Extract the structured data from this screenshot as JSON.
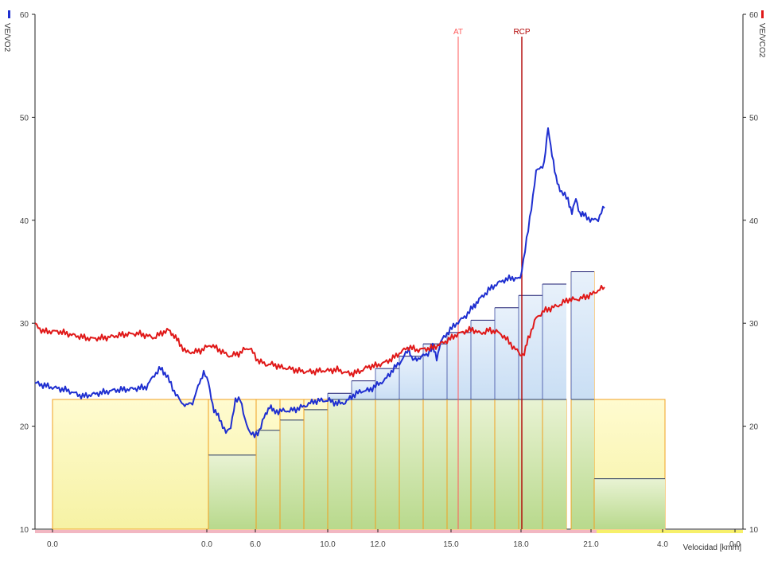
{
  "chart_data": {
    "type": "line",
    "y_left": {
      "label": "VE/VO2",
      "ticks": [
        10,
        20,
        30,
        40,
        50,
        60
      ],
      "range": [
        10,
        60
      ],
      "color": "#1f2fd0"
    },
    "y_right": {
      "label": "VE/VCO2",
      "ticks": [
        10,
        20,
        30,
        40,
        50,
        60
      ],
      "range": [
        10,
        60
      ],
      "color": "#e01818"
    },
    "x_axis": {
      "label": "Velocidad [km/h]",
      "tick_labels": [
        "0.0",
        "0.0",
        "6.0",
        "10.0",
        "12.0",
        "15.0",
        "18.0",
        "21.0",
        "4.0",
        "0.0"
      ]
    },
    "markers": [
      {
        "label": "AT",
        "color": "#ff5a5a"
      },
      {
        "label": "RCP",
        "color": "#b00000"
      }
    ],
    "series": [
      {
        "name": "VE/VO2",
        "color": "#1f2fd0",
        "points": [
          [
            0,
            24.2
          ],
          [
            20,
            23.8
          ],
          [
            40,
            23.5
          ],
          [
            60,
            22.9
          ],
          [
            80,
            23.2
          ],
          [
            100,
            23.5
          ],
          [
            120,
            23.6
          ],
          [
            140,
            23.8
          ],
          [
            150,
            25
          ],
          [
            158,
            25.6
          ],
          [
            165,
            25
          ],
          [
            175,
            23.4
          ],
          [
            183,
            22.4
          ],
          [
            190,
            22
          ],
          [
            198,
            22.3
          ],
          [
            205,
            23.8
          ],
          [
            212,
            25.3
          ],
          [
            218,
            24.2
          ],
          [
            225,
            21.5
          ],
          [
            232,
            20.8
          ],
          [
            240,
            19.3
          ],
          [
            246,
            20
          ],
          [
            252,
            22.4
          ],
          [
            258,
            22.8
          ],
          [
            264,
            20.5
          ],
          [
            270,
            19.5
          ],
          [
            276,
            19
          ],
          [
            282,
            19.6
          ],
          [
            288,
            20.8
          ],
          [
            295,
            22
          ],
          [
            300,
            21.4
          ],
          [
            310,
            21.5
          ],
          [
            320,
            21.5
          ],
          [
            330,
            21.7
          ],
          [
            340,
            22
          ],
          [
            350,
            22.4
          ],
          [
            360,
            22.5
          ],
          [
            370,
            22.5
          ],
          [
            380,
            22.2
          ],
          [
            390,
            22.3
          ],
          [
            400,
            23
          ],
          [
            410,
            23.4
          ],
          [
            420,
            23.5
          ],
          [
            430,
            24
          ],
          [
            440,
            24.5
          ],
          [
            450,
            25.5
          ],
          [
            460,
            26.3
          ],
          [
            470,
            27.5
          ],
          [
            475,
            26.4
          ],
          [
            480,
            26.5
          ],
          [
            486,
            26.8
          ],
          [
            492,
            26.9
          ],
          [
            500,
            27.7
          ],
          [
            505,
            26.6
          ],
          [
            510,
            28.2
          ],
          [
            520,
            29.2
          ],
          [
            530,
            30
          ],
          [
            540,
            30.6
          ],
          [
            550,
            31.5
          ],
          [
            555,
            32
          ],
          [
            560,
            32.4
          ],
          [
            570,
            33.2
          ],
          [
            580,
            33.8
          ],
          [
            590,
            34.2
          ],
          [
            600,
            34.4
          ],
          [
            610,
            34.3
          ],
          [
            620,
            39
          ],
          [
            630,
            44.7
          ],
          [
            640,
            45.5
          ],
          [
            645,
            48.9
          ],
          [
            650,
            46.5
          ],
          [
            655,
            44
          ],
          [
            660,
            43
          ],
          [
            670,
            42
          ],
          [
            675,
            40.8
          ],
          [
            680,
            42
          ],
          [
            685,
            40.7
          ],
          [
            690,
            40.5
          ],
          [
            700,
            40
          ],
          [
            708,
            40.1
          ],
          [
            712,
            40.8
          ],
          [
            716,
            41.2
          ]
        ]
      },
      {
        "name": "VE/VCO2",
        "color": "#e01818",
        "points": [
          [
            0,
            29.9
          ],
          [
            10,
            29.2
          ],
          [
            30,
            29.2
          ],
          [
            50,
            28.8
          ],
          [
            70,
            28.5
          ],
          [
            90,
            28.6
          ],
          [
            110,
            28.9
          ],
          [
            130,
            29
          ],
          [
            150,
            28.6
          ],
          [
            160,
            29.1
          ],
          [
            168,
            29.3
          ],
          [
            175,
            28.8
          ],
          [
            182,
            28
          ],
          [
            190,
            27.2
          ],
          [
            200,
            27.2
          ],
          [
            210,
            27.4
          ],
          [
            220,
            27.9
          ],
          [
            230,
            27.5
          ],
          [
            240,
            27
          ],
          [
            246,
            26.8
          ],
          [
            252,
            27
          ],
          [
            258,
            27.1
          ],
          [
            264,
            27.5
          ],
          [
            270,
            27.6
          ],
          [
            276,
            26.9
          ],
          [
            280,
            26.4
          ],
          [
            290,
            26
          ],
          [
            300,
            26
          ],
          [
            310,
            25.7
          ],
          [
            320,
            25.6
          ],
          [
            330,
            25.4
          ],
          [
            340,
            25.3
          ],
          [
            350,
            25.3
          ],
          [
            360,
            25.4
          ],
          [
            370,
            25.4
          ],
          [
            380,
            25.5
          ],
          [
            390,
            25.2
          ],
          [
            400,
            25.1
          ],
          [
            410,
            25.4
          ],
          [
            420,
            25.8
          ],
          [
            430,
            25.9
          ],
          [
            440,
            26.2
          ],
          [
            450,
            26.6
          ],
          [
            460,
            27.2
          ],
          [
            470,
            27.7
          ],
          [
            480,
            27.4
          ],
          [
            490,
            27.5
          ],
          [
            500,
            27.6
          ],
          [
            510,
            28
          ],
          [
            520,
            28.4
          ],
          [
            530,
            28.9
          ],
          [
            540,
            29.2
          ],
          [
            550,
            29.4
          ],
          [
            560,
            29
          ],
          [
            570,
            29.3
          ],
          [
            580,
            29.2
          ],
          [
            590,
            28.7
          ],
          [
            600,
            27.8
          ],
          [
            610,
            27
          ],
          [
            615,
            27
          ],
          [
            620,
            28.5
          ],
          [
            630,
            30.5
          ],
          [
            640,
            31.2
          ],
          [
            650,
            31.5
          ],
          [
            660,
            31.8
          ],
          [
            670,
            32.3
          ],
          [
            680,
            32.3
          ],
          [
            690,
            32.5
          ],
          [
            700,
            32.8
          ],
          [
            710,
            33.3
          ],
          [
            716,
            33.5
          ]
        ]
      }
    ],
    "background_bars": {
      "yellow": [
        {
          "x0": 22,
          "x1": 218,
          "top": 22.6
        },
        {
          "x0": 218,
          "x1": 278,
          "top": 22.6
        },
        {
          "x0": 278,
          "x1": 308,
          "top": 22.6
        },
        {
          "x0": 308,
          "x1": 338,
          "top": 22.6
        },
        {
          "x0": 338,
          "x1": 368,
          "top": 22.6
        },
        {
          "x0": 368,
          "x1": 398,
          "top": 22.6
        },
        {
          "x0": 398,
          "x1": 428,
          "top": 22.6
        },
        {
          "x0": 428,
          "x1": 458,
          "top": 22.6
        },
        {
          "x0": 458,
          "x1": 488,
          "top": 22.6
        },
        {
          "x0": 488,
          "x1": 518,
          "top": 22.6
        },
        {
          "x0": 518,
          "x1": 548,
          "top": 22.6
        },
        {
          "x0": 548,
          "x1": 578,
          "top": 22.6
        },
        {
          "x0": 578,
          "x1": 608,
          "top": 22.6
        },
        {
          "x0": 608,
          "x1": 638,
          "top": 22.6
        },
        {
          "x0": 638,
          "x1": 668,
          "top": 22.6
        },
        {
          "x0": 674,
          "x1": 703,
          "top": 35.0
        },
        {
          "x0": 703,
          "x1": 792,
          "top": 22.6
        }
      ],
      "green": [
        {
          "x0": 218,
          "x1": 278,
          "top": 17.2
        },
        {
          "x0": 278,
          "x1": 308,
          "top": 19.6
        },
        {
          "x0": 308,
          "x1": 338,
          "top": 20.6
        },
        {
          "x0": 338,
          "x1": 368,
          "top": 21.6
        },
        {
          "x0": 368,
          "x1": 398,
          "top": 22.6
        },
        {
          "x0": 398,
          "x1": 428,
          "top": 22.6
        },
        {
          "x0": 428,
          "x1": 458,
          "top": 22.6
        },
        {
          "x0": 458,
          "x1": 488,
          "top": 22.6
        },
        {
          "x0": 488,
          "x1": 518,
          "top": 22.6
        },
        {
          "x0": 518,
          "x1": 548,
          "top": 22.6
        },
        {
          "x0": 548,
          "x1": 578,
          "top": 22.6
        },
        {
          "x0": 578,
          "x1": 608,
          "top": 22.6
        },
        {
          "x0": 608,
          "x1": 638,
          "top": 22.6
        },
        {
          "x0": 638,
          "x1": 668,
          "top": 22.6
        },
        {
          "x0": 674,
          "x1": 703,
          "top": 22.6
        },
        {
          "x0": 703,
          "x1": 792,
          "top": 14.9
        }
      ],
      "blue": [
        {
          "x0": 368,
          "x1": 398,
          "top": 23.2
        },
        {
          "x0": 398,
          "x1": 428,
          "top": 24.4
        },
        {
          "x0": 428,
          "x1": 458,
          "top": 25.6
        },
        {
          "x0": 458,
          "x1": 488,
          "top": 26.8
        },
        {
          "x0": 488,
          "x1": 518,
          "top": 28.0
        },
        {
          "x0": 518,
          "x1": 548,
          "top": 29.1
        },
        {
          "x0": 548,
          "x1": 578,
          "top": 30.3
        },
        {
          "x0": 578,
          "x1": 608,
          "top": 31.5
        },
        {
          "x0": 608,
          "x1": 638,
          "top": 32.7
        },
        {
          "x0": 638,
          "x1": 668,
          "top": 33.8
        },
        {
          "x0": 674,
          "x1": 703,
          "top": 35.0
        }
      ]
    }
  }
}
